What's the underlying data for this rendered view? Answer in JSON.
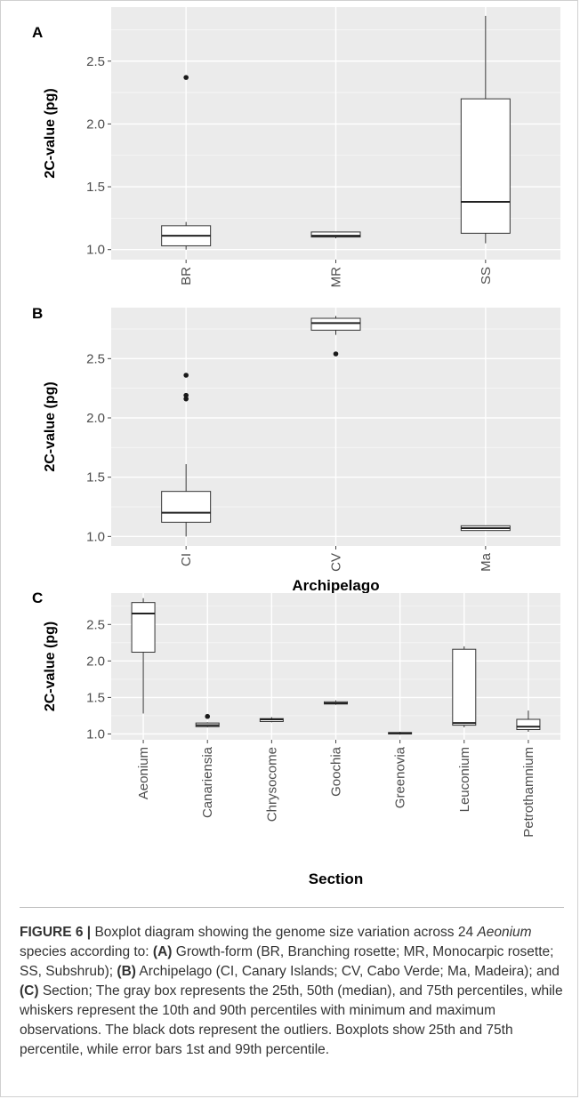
{
  "chart_data": [
    {
      "type": "boxplot",
      "panel": "A",
      "xlabel": "Growth-form",
      "ylabel": "2C-value (pg)",
      "ylim": [
        0.92,
        2.93
      ],
      "yticks": [
        1.0,
        1.5,
        2.0,
        2.5
      ],
      "grid": true,
      "categories": [
        "BR",
        "MR",
        "SS"
      ],
      "boxes": [
        {
          "category": "BR",
          "min": 1.0,
          "q1": 1.03,
          "median": 1.11,
          "q3": 1.19,
          "max": 1.22,
          "outliers": [
            2.37
          ]
        },
        {
          "category": "MR",
          "min": 1.09,
          "q1": 1.1,
          "median": 1.11,
          "q3": 1.14,
          "max": 1.14,
          "outliers": []
        },
        {
          "category": "SS",
          "min": 1.05,
          "q1": 1.13,
          "median": 1.38,
          "q3": 2.2,
          "max": 2.86,
          "outliers": []
        }
      ]
    },
    {
      "type": "boxplot",
      "panel": "B",
      "xlabel": "Archipelago",
      "ylabel": "2C-value (pg)",
      "ylim": [
        0.92,
        2.93
      ],
      "yticks": [
        1.0,
        1.5,
        2.0,
        2.5
      ],
      "grid": true,
      "categories": [
        "CI",
        "CV",
        "Ma"
      ],
      "boxes": [
        {
          "category": "CI",
          "min": 1.0,
          "q1": 1.12,
          "median": 1.2,
          "q3": 1.38,
          "max": 1.61,
          "outliers": [
            2.16,
            2.19,
            2.36
          ]
        },
        {
          "category": "CV",
          "min": 2.7,
          "q1": 2.74,
          "median": 2.8,
          "q3": 2.84,
          "max": 2.86,
          "outliers": [
            2.54
          ]
        },
        {
          "category": "Ma",
          "min": 1.05,
          "q1": 1.05,
          "median": 1.07,
          "q3": 1.09,
          "max": 1.09,
          "outliers": []
        }
      ]
    },
    {
      "type": "boxplot",
      "panel": "C",
      "xlabel": "Section",
      "ylabel": "2C-value (pg)",
      "ylim": [
        0.92,
        2.93
      ],
      "yticks": [
        1.0,
        1.5,
        2.0,
        2.5
      ],
      "grid": true,
      "categories": [
        "Aeonium",
        "Canariensia",
        "Chrysocome",
        "Goochia",
        "Greenovia",
        "Leuconium",
        "Petrothamnium"
      ],
      "boxes": [
        {
          "category": "Aeonium",
          "min": 1.28,
          "q1": 2.12,
          "median": 2.65,
          "q3": 2.8,
          "max": 2.86,
          "outliers": []
        },
        {
          "category": "Canariensia",
          "min": 1.09,
          "q1": 1.1,
          "median": 1.12,
          "q3": 1.15,
          "max": 1.16,
          "outliers": [
            1.24
          ]
        },
        {
          "category": "Chrysocome",
          "min": 1.16,
          "q1": 1.17,
          "median": 1.2,
          "q3": 1.21,
          "max": 1.23,
          "outliers": []
        },
        {
          "category": "Goochia",
          "min": 1.4,
          "q1": 1.41,
          "median": 1.42,
          "q3": 1.44,
          "max": 1.46,
          "outliers": []
        },
        {
          "category": "Greenovia",
          "min": 0.99,
          "q1": 1.0,
          "median": 1.01,
          "q3": 1.02,
          "max": 1.03,
          "outliers": []
        },
        {
          "category": "Leuconium",
          "min": 1.09,
          "q1": 1.12,
          "median": 1.15,
          "q3": 2.16,
          "max": 2.2,
          "outliers": []
        },
        {
          "category": "Petrothamnium",
          "min": 1.03,
          "q1": 1.06,
          "median": 1.1,
          "q3": 1.2,
          "max": 1.32,
          "outliers": []
        }
      ]
    }
  ],
  "caption": {
    "figure_label": "FIGURE 6 |",
    "text_1": " Boxplot diagram showing the genome size variation across 24 ",
    "genus": "Aeonium",
    "text_2": " species according to: ",
    "part_a": "(A)",
    "text_3": " Growth-form (BR, Branching rosette; MR, Monocarpic rosette; SS, Subshrub); ",
    "part_b": "(B)",
    "text_4": " Archipelago (CI, Canary Islands; CV, Cabo Verde; Ma, Madeira); and ",
    "part_c": "(C)",
    "text_5": " Section; The gray box represents the 25th, 50th (median), and 75th percentiles, while whiskers represent the 10th and 90th percentiles with minimum and maximum observations. The black dots represent the outliers. Boxplots show 25th and 75th percentile, while error bars 1st and 99th percentile."
  }
}
